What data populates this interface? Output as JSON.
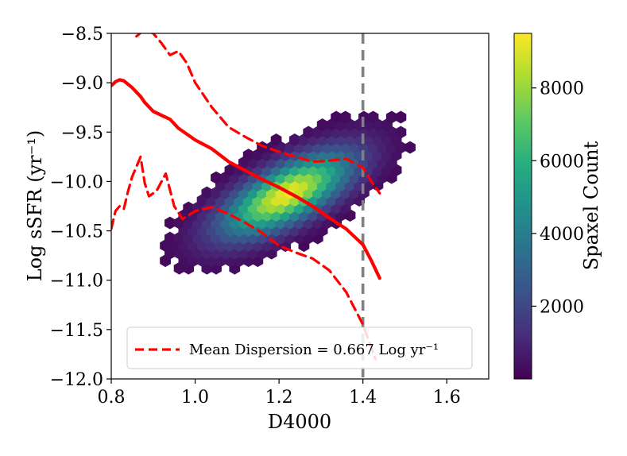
{
  "chart_data": {
    "type": "heatmap",
    "subtype": "hexbin",
    "xlabel": "D4000",
    "ylabel": "Log sSFR (yr⁻¹)",
    "xlim": [
      0.8,
      1.7
    ],
    "ylim": [
      -12.0,
      -8.5
    ],
    "x_ticks": [
      "0.8",
      "1.0",
      "1.2",
      "1.4",
      "1.6"
    ],
    "y_ticks": [
      "−12.0",
      "−11.5",
      "−11.0",
      "−10.5",
      "−10.0",
      "−9.5",
      "−9.0",
      "−8.5"
    ],
    "x_tick_values": [
      0.8,
      1.0,
      1.2,
      1.4,
      1.6
    ],
    "y_tick_values": [
      -12.0,
      -11.5,
      -11.0,
      -10.5,
      -10.0,
      -9.5,
      -9.0,
      -8.5
    ],
    "colorbar": {
      "label": "Spaxel Count",
      "ticks": [
        "2000",
        "4000",
        "6000",
        "8000"
      ],
      "tick_values": [
        2000,
        4000,
        6000,
        8000
      ],
      "vmin": 0,
      "vmax": 9500,
      "colormap": "viridis"
    },
    "density_peak": {
      "x": 1.22,
      "y": -10.12,
      "count": 9500
    },
    "vertical_line": {
      "x": 1.4,
      "color": "#808080",
      "style": "dashed"
    },
    "mean_line": {
      "color": "#ff0000",
      "x": [
        0.8,
        0.81,
        0.82,
        0.83,
        0.85,
        0.87,
        0.88,
        0.9,
        0.92,
        0.94,
        0.96,
        1.0,
        1.04,
        1.08,
        1.12,
        1.16,
        1.2,
        1.24,
        1.28,
        1.32,
        1.36,
        1.4,
        1.42,
        1.44
      ],
      "y": [
        -9.03,
        -8.99,
        -8.97,
        -8.98,
        -9.05,
        -9.14,
        -9.2,
        -9.29,
        -9.33,
        -9.37,
        -9.46,
        -9.58,
        -9.67,
        -9.8,
        -9.89,
        -9.98,
        -10.06,
        -10.15,
        -10.25,
        -10.37,
        -10.48,
        -10.64,
        -10.8,
        -10.98
      ]
    },
    "upper_dispersion": {
      "color": "#ff0000",
      "style": "dashed",
      "x": [
        0.86,
        0.88,
        0.9,
        0.92,
        0.94,
        0.96,
        0.98,
        1.0,
        1.04,
        1.08,
        1.12,
        1.16,
        1.2,
        1.24,
        1.28,
        1.32,
        1.36,
        1.4,
        1.42,
        1.44
      ],
      "y": [
        -8.53,
        -8.46,
        -8.5,
        -8.6,
        -8.72,
        -8.68,
        -8.8,
        -9.0,
        -9.25,
        -9.45,
        -9.55,
        -9.64,
        -9.7,
        -9.75,
        -9.8,
        -9.79,
        -9.77,
        -9.86,
        -10.0,
        -10.12
      ]
    },
    "lower_dispersion": {
      "color": "#ff0000",
      "style": "dashed",
      "x": [
        0.8,
        0.81,
        0.82,
        0.83,
        0.84,
        0.85,
        0.86,
        0.87,
        0.88,
        0.89,
        0.9,
        0.91,
        0.92,
        0.93,
        0.95,
        0.97,
        1.0,
        1.04,
        1.08,
        1.12,
        1.16,
        1.2,
        1.24,
        1.28,
        1.32,
        1.36,
        1.4,
        1.43
      ],
      "y": [
        -10.48,
        -10.3,
        -10.25,
        -10.28,
        -10.1,
        -9.95,
        -9.85,
        -9.75,
        -10.02,
        -10.15,
        -10.12,
        -10.08,
        -10.0,
        -9.92,
        -10.25,
        -10.38,
        -10.3,
        -10.26,
        -10.33,
        -10.42,
        -10.52,
        -10.65,
        -10.72,
        -10.78,
        -10.9,
        -11.12,
        -11.45,
        -11.8
      ]
    },
    "legend": {
      "entries": [
        {
          "label": "Mean Dispersion = 0.667 Log yr⁻¹",
          "style": "dashed",
          "color": "#ff0000"
        }
      ],
      "placement": "lower-left"
    }
  }
}
